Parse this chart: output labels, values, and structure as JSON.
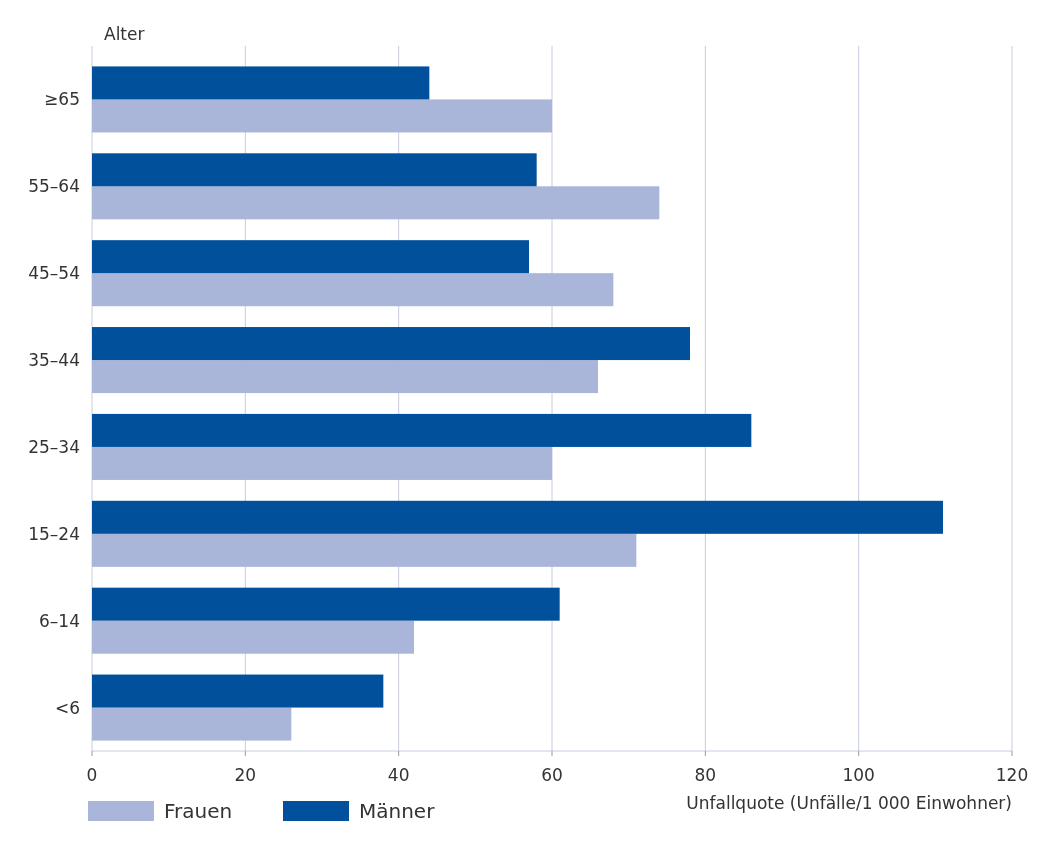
{
  "chart_data": {
    "type": "bar",
    "orientation": "horizontal",
    "ylabel": "Alter",
    "xlabel": "Unfallquote (Unfälle/1 000 Einwohner)",
    "categories": [
      "≥65",
      "55–64",
      "45–54",
      "35–44",
      "25–34",
      "15–24",
      "6–14",
      "<6"
    ],
    "series": [
      {
        "name": "Frauen",
        "color": "#a9b5d9",
        "values": [
          60,
          74,
          68,
          66,
          60,
          71,
          42,
          26
        ]
      },
      {
        "name": "Männer",
        "color": "#00509b",
        "values": [
          44,
          58,
          57,
          78,
          86,
          111,
          61,
          38
        ]
      }
    ],
    "xlim": [
      0,
      120
    ],
    "xticks": [
      0,
      20,
      40,
      60,
      80,
      100,
      120
    ],
    "grid": "x",
    "legend": "bottom left"
  }
}
